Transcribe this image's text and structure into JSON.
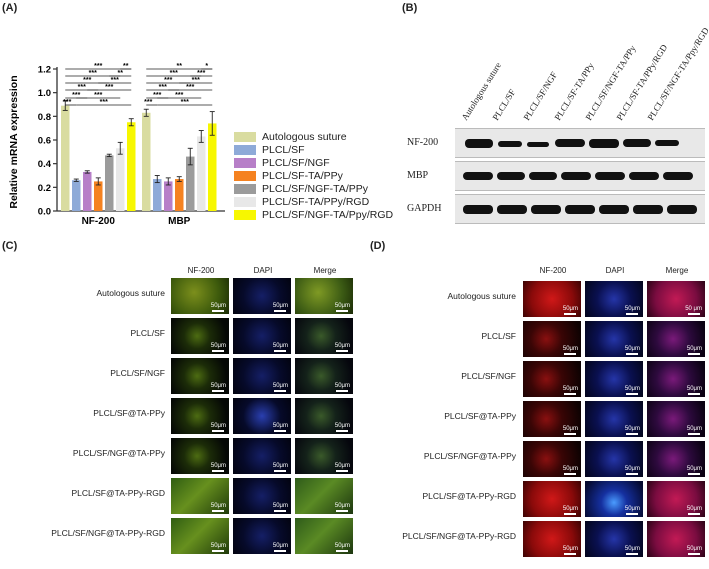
{
  "panels": {
    "A": "(A)",
    "B": "(B)",
    "C": "(C)",
    "D": "(D)"
  },
  "chart_data": {
    "type": "bar",
    "ylabel": "Relative mRNA expression",
    "ylim": [
      0,
      1.2
    ],
    "yticks": [
      "0.0",
      "0.2",
      "0.4",
      "0.6",
      "0.8",
      "1.0",
      "1.2"
    ],
    "categories": [
      "NF-200",
      "MBP"
    ],
    "series": [
      {
        "name": "Autologous suture",
        "color": "#d9dca0",
        "values": [
          0.89,
          0.83
        ],
        "errors": [
          0.04,
          0.03
        ]
      },
      {
        "name": "PLCL/SF",
        "color": "#8eaad8",
        "values": [
          0.26,
          0.27
        ],
        "errors": [
          0.01,
          0.03
        ]
      },
      {
        "name": "PLCL/SF/NGF",
        "color": "#b77fc8",
        "values": [
          0.33,
          0.25
        ],
        "errors": [
          0.01,
          0.03
        ]
      },
      {
        "name": "PLCL/SF-TA/PPy",
        "color": "#f58220",
        "values": [
          0.25,
          0.27
        ],
        "errors": [
          0.03,
          0.02
        ]
      },
      {
        "name": "PLCL/SF/NGF-TA/PPy",
        "color": "#9b9b9b",
        "values": [
          0.47,
          0.46
        ],
        "errors": [
          0.01,
          0.07
        ]
      },
      {
        "name": "PLCL/SF-TA/PPy/RGD",
        "color": "#e8e8e8",
        "values": [
          0.53,
          0.63
        ],
        "errors": [
          0.05,
          0.05
        ]
      },
      {
        "name": "PLCL/SF/NGF-TA/Ppy/RGD",
        "color": "#f7f700",
        "values": [
          0.75,
          0.74
        ],
        "errors": [
          0.03,
          0.1
        ]
      }
    ],
    "significance": {
      "NF-200": [
        "***",
        "***",
        "***",
        "***",
        "***",
        "***",
        "***",
        "**",
        "**",
        "***",
        "***",
        "***"
      ],
      "MBP": [
        "**",
        "***",
        "***",
        "***",
        "***",
        "***",
        "***",
        "*",
        "***",
        "***",
        "***",
        "***"
      ]
    }
  },
  "western_blot": {
    "lanes": [
      "Autologous suture",
      "PLCL/SF",
      "PLCL/SF/NGF",
      "PLCL/SF-TA/PPy",
      "PLCL/SF/NGF-TA/PPy",
      "PLCL/SF-TA/PPy/RGD",
      "PLCL/SF/NGF-TA/Ppy/RGD"
    ],
    "rows": [
      "NF-200",
      "MBP",
      "GAPDH"
    ]
  },
  "panel_C": {
    "columns": [
      "NF-200",
      "DAPI",
      "Merge"
    ],
    "rows": [
      "Autologous suture",
      "PLCL/SF",
      "PLCL/SF/NGF",
      "PLCL/SF@TA-PPy",
      "PLCL/SF/NGF@TA-PPy",
      "PLCL/SF@TA-PPy-RGD",
      "PLCL/SF/NGF@TA-PPy-RGD"
    ],
    "scale": "50μm"
  },
  "panel_D": {
    "columns": [
      "NF-200",
      "DAPI",
      "Merge"
    ],
    "rows": [
      "Autologous suture",
      "PLCL/SF",
      "PLCL/SF/NGF",
      "PLCL/SF@TA-PPy",
      "PLCL/SF/NGF@TA-PPy",
      "PLCL/SF@TA-PPy-RGD",
      "PLCL/SF/NGF@TA-PPy-RGD"
    ],
    "scale": "50μm",
    "scale_first_merge": "50 μm"
  }
}
